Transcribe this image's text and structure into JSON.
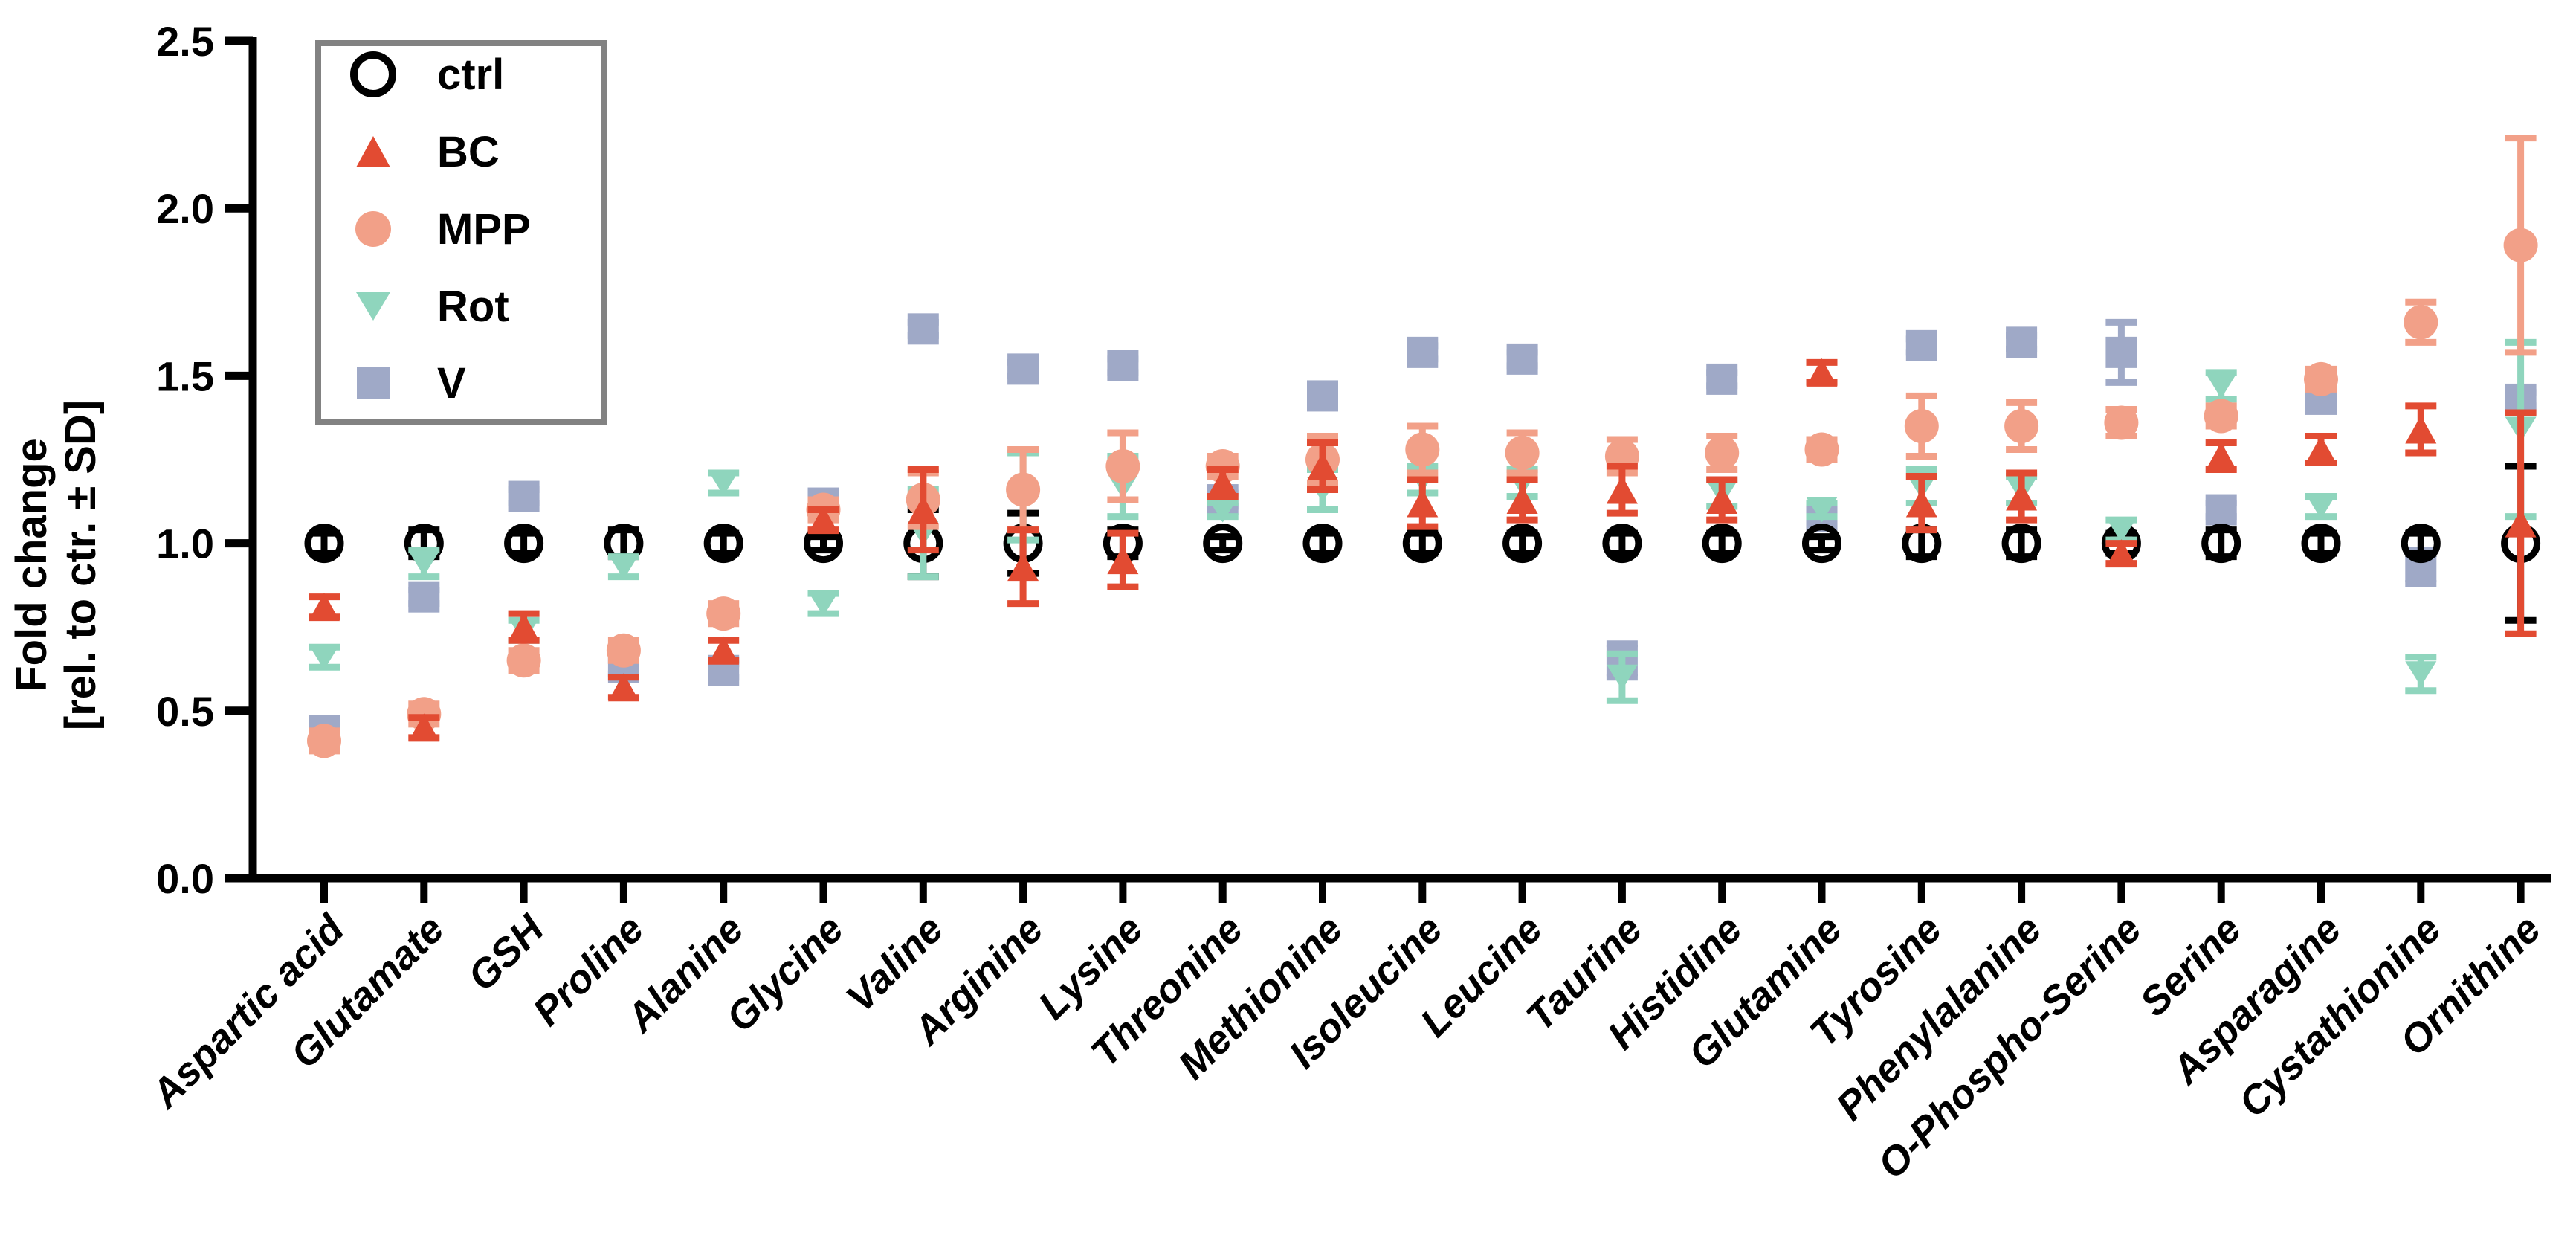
{
  "figure": {
    "background": "#ffffff",
    "axis_color": "#000000",
    "legend_border_color": "#828282"
  },
  "chart_data": {
    "type": "scatter",
    "title": "",
    "xlabel": "",
    "ylabel_line1": "Fold change",
    "ylabel_line2": "[rel. to ctr. ± SD]",
    "ylim": [
      0.0,
      2.5
    ],
    "yticks": [
      0.0,
      0.5,
      1.0,
      1.5,
      2.0,
      2.5
    ],
    "yticklabels": [
      "0.0",
      "0.5",
      "1.0",
      "1.5",
      "2.0",
      "2.5"
    ],
    "grid": false,
    "legend_position": "upper-left-inside",
    "categories": [
      "Aspartic acid",
      "Glutamate",
      "GSH",
      "Proline",
      "Alanine",
      "Glycine",
      "Valine",
      "Arginine",
      "Lysine",
      "Threonine",
      "Methionine",
      "Isoleucine",
      "Leucine",
      "Taurine",
      "Histidine",
      "Glutamine",
      "Tyrosine",
      "Phenylalanine",
      "O-Phospho-Serine",
      "Serine",
      "Asparagine",
      "Cystathionine",
      "Ornithine"
    ],
    "series": [
      {
        "name": "ctrl",
        "marker": "open-circle",
        "color": "#000000",
        "values": [
          1.0,
          1.0,
          1.0,
          1.0,
          1.0,
          1.0,
          1.0,
          1.0,
          1.0,
          1.0,
          1.0,
          1.0,
          1.0,
          1.0,
          1.0,
          1.0,
          1.0,
          1.0,
          1.0,
          1.0,
          1.0,
          1.0,
          1.0
        ],
        "sd": [
          0.03,
          0.04,
          0.03,
          0.04,
          0.03,
          0.02,
          0.1,
          0.09,
          0.04,
          0.02,
          0.03,
          0.03,
          0.03,
          0.03,
          0.03,
          0.02,
          0.04,
          0.04,
          0.03,
          0.04,
          0.03,
          0.03,
          0.23
        ]
      },
      {
        "name": "BC",
        "marker": "triangle-up",
        "color": "#e24b32",
        "values": [
          0.81,
          0.45,
          0.75,
          0.57,
          0.68,
          1.07,
          1.1,
          0.93,
          0.95,
          1.18,
          1.23,
          1.12,
          1.13,
          1.16,
          1.13,
          1.51,
          1.12,
          1.14,
          0.97,
          1.26,
          1.28,
          1.34,
          1.06
        ],
        "sd": [
          0.03,
          0.03,
          0.04,
          0.03,
          0.03,
          0.03,
          0.12,
          0.11,
          0.08,
          0.04,
          0.07,
          0.07,
          0.06,
          0.07,
          0.06,
          0.03,
          0.08,
          0.07,
          0.03,
          0.04,
          0.04,
          0.07,
          0.33
        ]
      },
      {
        "name": "MPP",
        "marker": "circle",
        "color": "#f2a088",
        "values": [
          0.41,
          0.49,
          0.65,
          0.68,
          0.79,
          1.1,
          1.13,
          1.16,
          1.23,
          1.23,
          1.25,
          1.28,
          1.27,
          1.26,
          1.27,
          1.28,
          1.35,
          1.35,
          1.36,
          1.38,
          1.49,
          1.66,
          1.89
        ],
        "sd": [
          0.03,
          0.03,
          0.03,
          0.03,
          0.03,
          0.03,
          0.08,
          0.12,
          0.1,
          0.03,
          0.07,
          0.07,
          0.06,
          0.05,
          0.05,
          0.03,
          0.09,
          0.07,
          0.04,
          0.03,
          0.03,
          0.06,
          0.32
        ]
      },
      {
        "name": "Rot",
        "marker": "triangle-down",
        "color": "#8fd5bd",
        "values": [
          0.66,
          0.94,
          0.74,
          0.93,
          1.18,
          0.82,
          1.03,
          1.14,
          1.17,
          1.1,
          1.16,
          1.19,
          1.18,
          0.6,
          1.15,
          1.1,
          1.17,
          1.16,
          1.04,
          1.47,
          1.11,
          0.61,
          1.34
        ],
        "sd": [
          0.03,
          0.04,
          0.03,
          0.03,
          0.03,
          0.03,
          0.13,
          0.13,
          0.09,
          0.02,
          0.06,
          0.04,
          0.04,
          0.07,
          0.04,
          0.02,
          0.05,
          0.04,
          0.03,
          0.04,
          0.03,
          0.05,
          0.26
        ]
      },
      {
        "name": "V",
        "marker": "square",
        "color": "#9fa9c7",
        "values": [
          0.44,
          0.84,
          1.14,
          0.63,
          0.62,
          1.12,
          1.64,
          1.52,
          1.53,
          1.13,
          1.44,
          1.57,
          1.55,
          0.65,
          1.49,
          1.08,
          1.59,
          1.6,
          1.57,
          1.1,
          1.43,
          0.93,
          1.43
        ],
        "sd": [
          0.02,
          0.02,
          0.02,
          0.02,
          0.02,
          0.02,
          0.02,
          0.02,
          0.02,
          0.02,
          0.02,
          0.02,
          0.02,
          0.05,
          0.02,
          0.02,
          0.02,
          0.02,
          0.09,
          0.02,
          0.02,
          0.05,
          0.02
        ]
      }
    ],
    "legend_order": [
      "ctrl",
      "BC",
      "MPP",
      "Rot",
      "V"
    ],
    "draw_order": [
      "V",
      "ctrl",
      "Rot",
      "MPP",
      "BC"
    ]
  }
}
